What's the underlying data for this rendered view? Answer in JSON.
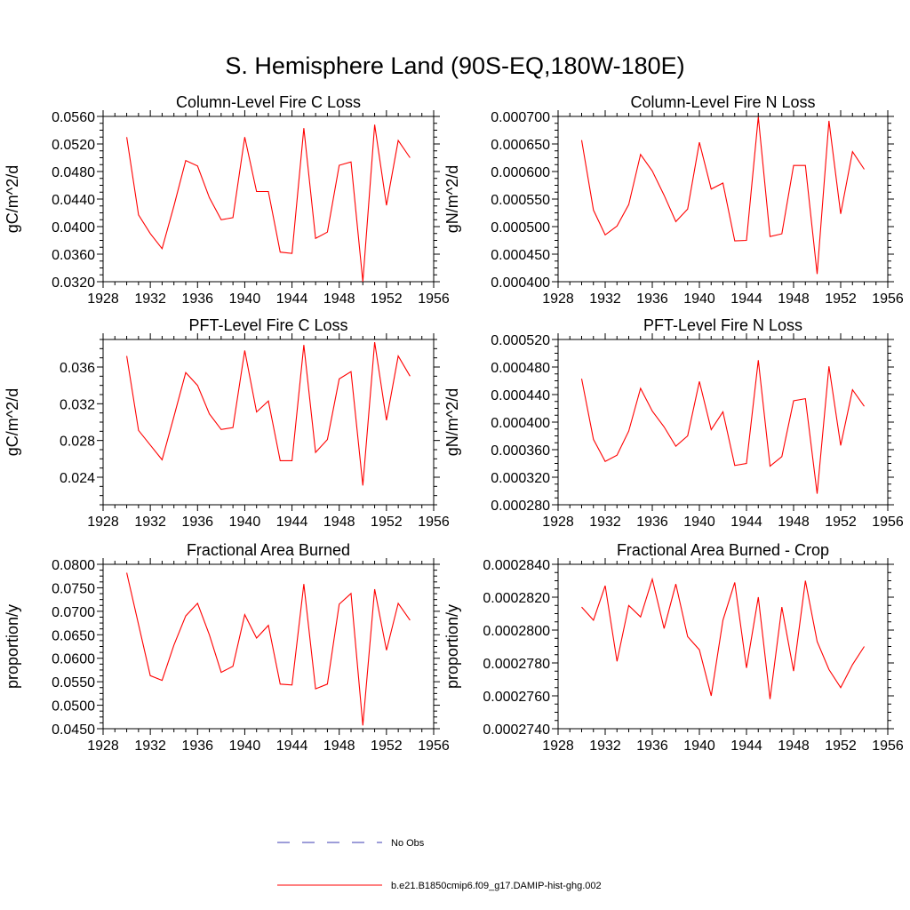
{
  "figure": {
    "title": "S. Hemisphere Land (90S-EQ,180W-180E)"
  },
  "legend": {
    "items": [
      {
        "label": "No Obs",
        "color": "#3b3bb3",
        "dashed": true
      },
      {
        "label": "b.e21.B1850cmip6.f09_g17.DAMIP-hist-ghg.002",
        "color": "#ff0000",
        "dashed": false
      }
    ]
  },
  "chart_data": [
    {
      "type": "line",
      "title": "Column-Level Fire C Loss",
      "ylabel": "gC/m^2/d",
      "xlim": [
        1928,
        1956
      ],
      "ylim": [
        0.032,
        0.056
      ],
      "xticks": [
        "1928",
        "1932",
        "1936",
        "1940",
        "1944",
        "1948",
        "1952",
        "1956"
      ],
      "yticks": [
        "0.0320",
        "0.0360",
        "0.0400",
        "0.0440",
        "0.0480",
        "0.0520",
        "0.0560"
      ],
      "x": [
        1930,
        1931,
        1932,
        1933,
        1934,
        1935,
        1936,
        1937,
        1938,
        1939,
        1940,
        1941,
        1942,
        1943,
        1944,
        1945,
        1946,
        1947,
        1948,
        1949,
        1950,
        1951,
        1952,
        1953,
        1954
      ],
      "series": [
        {
          "color": "#ff0000",
          "values": [
            0.053,
            0.0417,
            0.039,
            0.0368,
            0.043,
            0.0496,
            0.0488,
            0.0442,
            0.041,
            0.0413,
            0.053,
            0.0451,
            0.0451,
            0.0363,
            0.0361,
            0.0543,
            0.0383,
            0.0392,
            0.0489,
            0.0494,
            0.032,
            0.0548,
            0.0431,
            0.0525,
            0.05
          ]
        }
      ]
    },
    {
      "type": "line",
      "title": "Column-Level Fire N Loss",
      "ylabel": "gN/m^2/d",
      "xlim": [
        1928,
        1956
      ],
      "ylim": [
        0.0004,
        0.0007
      ],
      "xticks": [
        "1928",
        "1932",
        "1936",
        "1940",
        "1944",
        "1948",
        "1952",
        "1956"
      ],
      "yticks": [
        "0.000400",
        "0.000450",
        "0.000500",
        "0.000550",
        "0.000600",
        "0.000650",
        "0.000700"
      ],
      "x": [
        1930,
        1931,
        1932,
        1933,
        1934,
        1935,
        1936,
        1937,
        1938,
        1939,
        1940,
        1941,
        1942,
        1943,
        1944,
        1945,
        1946,
        1947,
        1948,
        1949,
        1950,
        1951,
        1952,
        1953,
        1954
      ],
      "series": [
        {
          "color": "#ff0000",
          "values": [
            0.000657,
            0.00053,
            0.000485,
            0.000501,
            0.00054,
            0.000631,
            0.000601,
            0.000557,
            0.000509,
            0.000532,
            0.000653,
            0.000568,
            0.000579,
            0.000474,
            0.000475,
            0.000699,
            0.000482,
            0.000487,
            0.000611,
            0.000611,
            0.000414,
            0.000692,
            0.000523,
            0.000636,
            0.000604
          ]
        }
      ]
    },
    {
      "type": "line",
      "title": "PFT-Level Fire C Loss",
      "ylabel": "gC/m^2/d",
      "xlim": [
        1928,
        1956
      ],
      "ylim": [
        0.021,
        0.039
      ],
      "xticks": [
        "1928",
        "1932",
        "1936",
        "1940",
        "1944",
        "1948",
        "1952",
        "1956"
      ],
      "yticks": [
        "0.024",
        "0.028",
        "0.032",
        "0.036"
      ],
      "x": [
        1930,
        1931,
        1932,
        1933,
        1934,
        1935,
        1936,
        1937,
        1938,
        1939,
        1940,
        1941,
        1942,
        1943,
        1944,
        1945,
        1946,
        1947,
        1948,
        1949,
        1950,
        1951,
        1952,
        1953,
        1954
      ],
      "series": [
        {
          "color": "#ff0000",
          "values": [
            0.0372,
            0.0291,
            0.0275,
            0.0259,
            0.0306,
            0.0354,
            0.034,
            0.0309,
            0.0292,
            0.0294,
            0.0378,
            0.0311,
            0.0323,
            0.0258,
            0.0258,
            0.0384,
            0.0267,
            0.0281,
            0.0347,
            0.0355,
            0.0231,
            0.0387,
            0.0302,
            0.0372,
            0.035
          ]
        }
      ]
    },
    {
      "type": "line",
      "title": "PFT-Level Fire N Loss",
      "ylabel": "gN/m^2/d",
      "xlim": [
        1928,
        1956
      ],
      "ylim": [
        0.00028,
        0.00052
      ],
      "xticks": [
        "1928",
        "1932",
        "1936",
        "1940",
        "1944",
        "1948",
        "1952",
        "1956"
      ],
      "yticks": [
        "0.000280",
        "0.000320",
        "0.000360",
        "0.000400",
        "0.000440",
        "0.000480",
        "0.000520"
      ],
      "x": [
        1930,
        1931,
        1932,
        1933,
        1934,
        1935,
        1936,
        1937,
        1938,
        1939,
        1940,
        1941,
        1942,
        1943,
        1944,
        1945,
        1946,
        1947,
        1948,
        1949,
        1950,
        1951,
        1952,
        1953,
        1954
      ],
      "series": [
        {
          "color": "#ff0000",
          "values": [
            0.000463,
            0.000375,
            0.000343,
            0.000352,
            0.000387,
            0.000449,
            0.000416,
            0.000393,
            0.000365,
            0.00038,
            0.000459,
            0.000389,
            0.000415,
            0.000337,
            0.00034,
            0.00049,
            0.000336,
            0.00035,
            0.000431,
            0.000434,
            0.000296,
            0.000481,
            0.000366,
            0.000447,
            0.000423
          ]
        }
      ]
    },
    {
      "type": "line",
      "title": "Fractional Area Burned",
      "ylabel": "proportion/y",
      "xlim": [
        1928,
        1956
      ],
      "ylim": [
        0.045,
        0.08
      ],
      "xticks": [
        "1928",
        "1932",
        "1936",
        "1940",
        "1944",
        "1948",
        "1952",
        "1956"
      ],
      "yticks": [
        "0.0450",
        "0.0500",
        "0.0550",
        "0.0600",
        "0.0650",
        "0.0700",
        "0.0750",
        "0.0800"
      ],
      "x": [
        1930,
        1931,
        1932,
        1933,
        1934,
        1935,
        1936,
        1937,
        1938,
        1939,
        1940,
        1941,
        1942,
        1943,
        1944,
        1945,
        1946,
        1947,
        1948,
        1949,
        1950,
        1951,
        1952,
        1953,
        1954
      ],
      "series": [
        {
          "color": "#ff0000",
          "values": [
            0.0782,
            0.0672,
            0.0563,
            0.0553,
            0.0628,
            0.069,
            0.0717,
            0.065,
            0.057,
            0.0583,
            0.0693,
            0.0643,
            0.067,
            0.0545,
            0.0543,
            0.0758,
            0.0535,
            0.0545,
            0.0715,
            0.0738,
            0.0457,
            0.0747,
            0.0617,
            0.0717,
            0.0681
          ]
        }
      ]
    },
    {
      "type": "line",
      "title": "Fractional Area Burned - Crop",
      "ylabel": "proportion/y",
      "xlim": [
        1928,
        1956
      ],
      "ylim": [
        0.000274,
        0.000284
      ],
      "xticks": [
        "1928",
        "1932",
        "1936",
        "1940",
        "1944",
        "1948",
        "1952",
        "1956"
      ],
      "yticks": [
        "0.0002740",
        "0.0002760",
        "0.0002780",
        "0.0002800",
        "0.0002820",
        "0.0002840"
      ],
      "x": [
        1930,
        1931,
        1932,
        1933,
        1934,
        1935,
        1936,
        1937,
        1938,
        1939,
        1940,
        1941,
        1942,
        1943,
        1944,
        1945,
        1946,
        1947,
        1948,
        1949,
        1950,
        1951,
        1952,
        1953,
        1954
      ],
      "series": [
        {
          "color": "#ff0000",
          "values": [
            0.0002814,
            0.0002806,
            0.0002827,
            0.0002781,
            0.0002815,
            0.0002808,
            0.0002831,
            0.0002801,
            0.0002828,
            0.0002796,
            0.0002788,
            0.000276,
            0.0002806,
            0.0002829,
            0.0002777,
            0.000282,
            0.0002758,
            0.0002814,
            0.0002775,
            0.000283,
            0.0002793,
            0.0002776,
            0.0002765,
            0.0002779,
            0.000279
          ]
        }
      ]
    }
  ]
}
